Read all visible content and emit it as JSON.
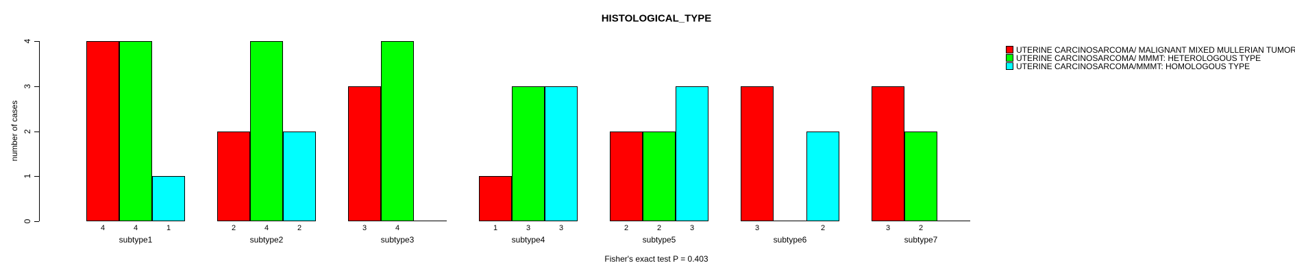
{
  "chart_data": {
    "type": "bar",
    "title": "HISTOLOGICAL_TYPE",
    "ylabel": "number of cases",
    "xlabel": "",
    "footnote": "Fisher's exact test P = 0.403",
    "ylim": [
      0,
      4
    ],
    "yticks": [
      "0",
      "1",
      "2",
      "3",
      "4"
    ],
    "grid": false,
    "legend_position": "top-right",
    "categories": [
      "subtype1",
      "subtype2",
      "subtype3",
      "subtype4",
      "subtype5",
      "subtype6",
      "subtype7"
    ],
    "series": [
      {
        "name": "UTERINE CARCINOSARCOMA/ MALIGNANT MIXED MULLERIAN TUMOR",
        "color": "#ff0000",
        "values": [
          4,
          2,
          3,
          1,
          2,
          3,
          3
        ]
      },
      {
        "name": "UTERINE CARCINOSARCOMA/ MMMT: HETEROLOGOUS TYPE",
        "color": "#00ff00",
        "values": [
          4,
          4,
          4,
          3,
          2,
          0,
          2
        ]
      },
      {
        "name": "UTERINE CARCINOSARCOMA/MMMT: HOMOLOGOUS TYPE",
        "color": "#00ffff",
        "values": [
          1,
          2,
          0,
          3,
          3,
          2,
          0
        ]
      }
    ]
  }
}
